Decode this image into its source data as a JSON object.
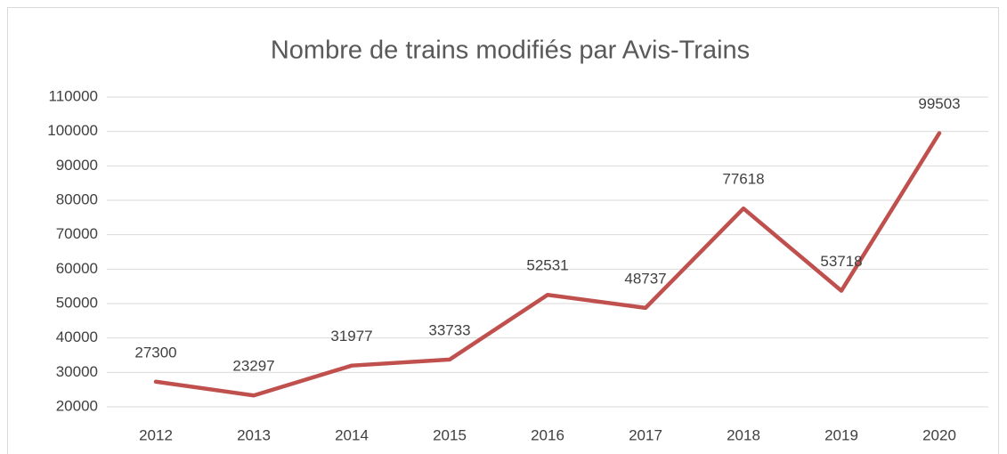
{
  "chart_data": {
    "type": "line",
    "title": "Nombre de trains modifiés par Avis-Trains",
    "categories": [
      "2012",
      "2013",
      "2014",
      "2015",
      "2016",
      "2017",
      "2018",
      "2019",
      "2020"
    ],
    "values": [
      27300,
      23297,
      31977,
      33733,
      52531,
      48737,
      77618,
      53718,
      99503
    ],
    "color": "#c0504d",
    "ylim": [
      20000,
      110000
    ],
    "yticks": [
      20000,
      30000,
      40000,
      50000,
      60000,
      70000,
      80000,
      90000,
      100000,
      110000
    ],
    "grid": true
  }
}
